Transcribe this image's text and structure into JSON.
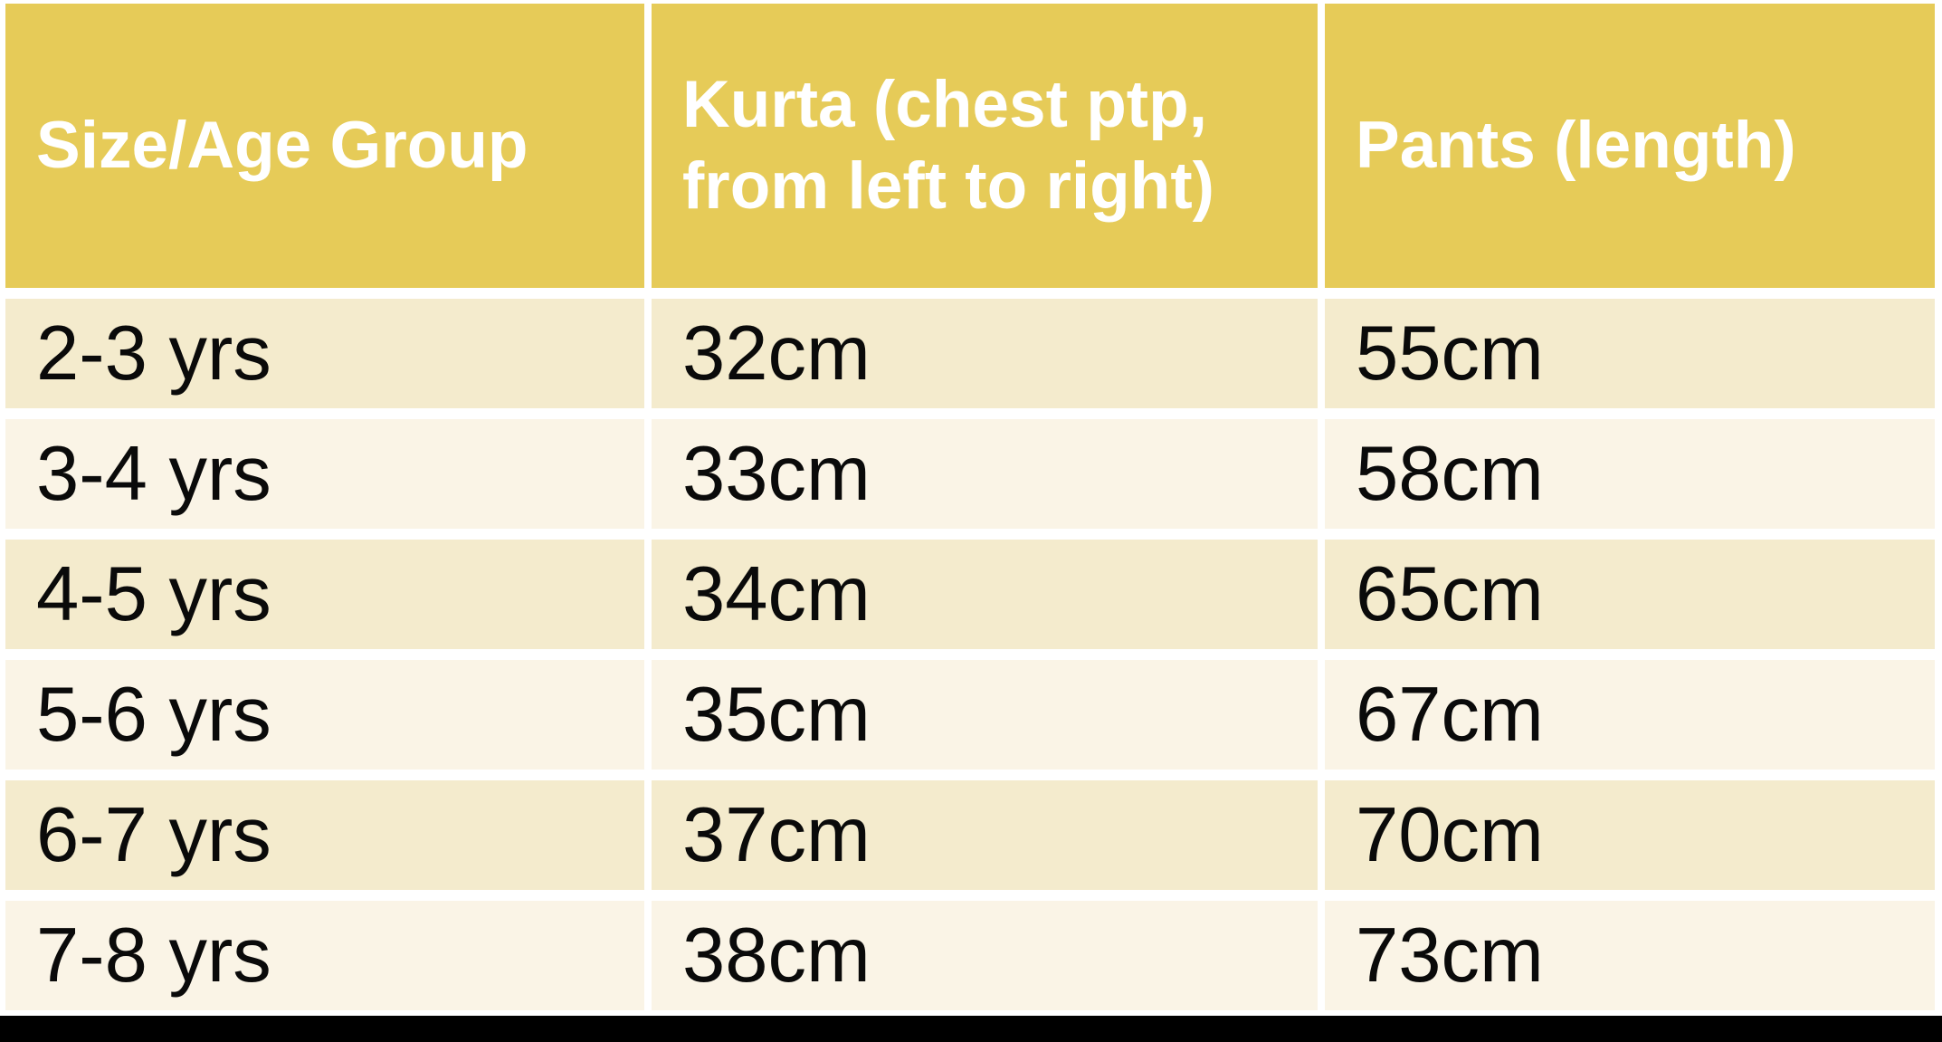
{
  "colors": {
    "header_bg": "#E6CB58",
    "header_text": "#FFFFFF",
    "row_dark_bg": "#F4EBCD",
    "row_light_bg": "#FAF4E6",
    "body_text": "#0A0A0A",
    "divider": "#FFFFFF",
    "bottom_bar": "#000000",
    "page_bg": "#FFFFFF"
  },
  "table": {
    "headers": [
      "Size/Age Group",
      "Kurta (chest ptp, from left to right)",
      "Pants (length)"
    ],
    "rows": [
      {
        "size_age": "2-3 yrs",
        "kurta_chest": "32cm",
        "pants_length": "55cm"
      },
      {
        "size_age": "3-4 yrs",
        "kurta_chest": "33cm",
        "pants_length": "58cm"
      },
      {
        "size_age": "4-5 yrs",
        "kurta_chest": "34cm",
        "pants_length": "65cm"
      },
      {
        "size_age": "5-6 yrs",
        "kurta_chest": "35cm",
        "pants_length": "67cm"
      },
      {
        "size_age": "6-7 yrs",
        "kurta_chest": "37cm",
        "pants_length": "70cm"
      },
      {
        "size_age": "7-8 yrs",
        "kurta_chest": "38cm",
        "pants_length": "73cm"
      }
    ]
  }
}
